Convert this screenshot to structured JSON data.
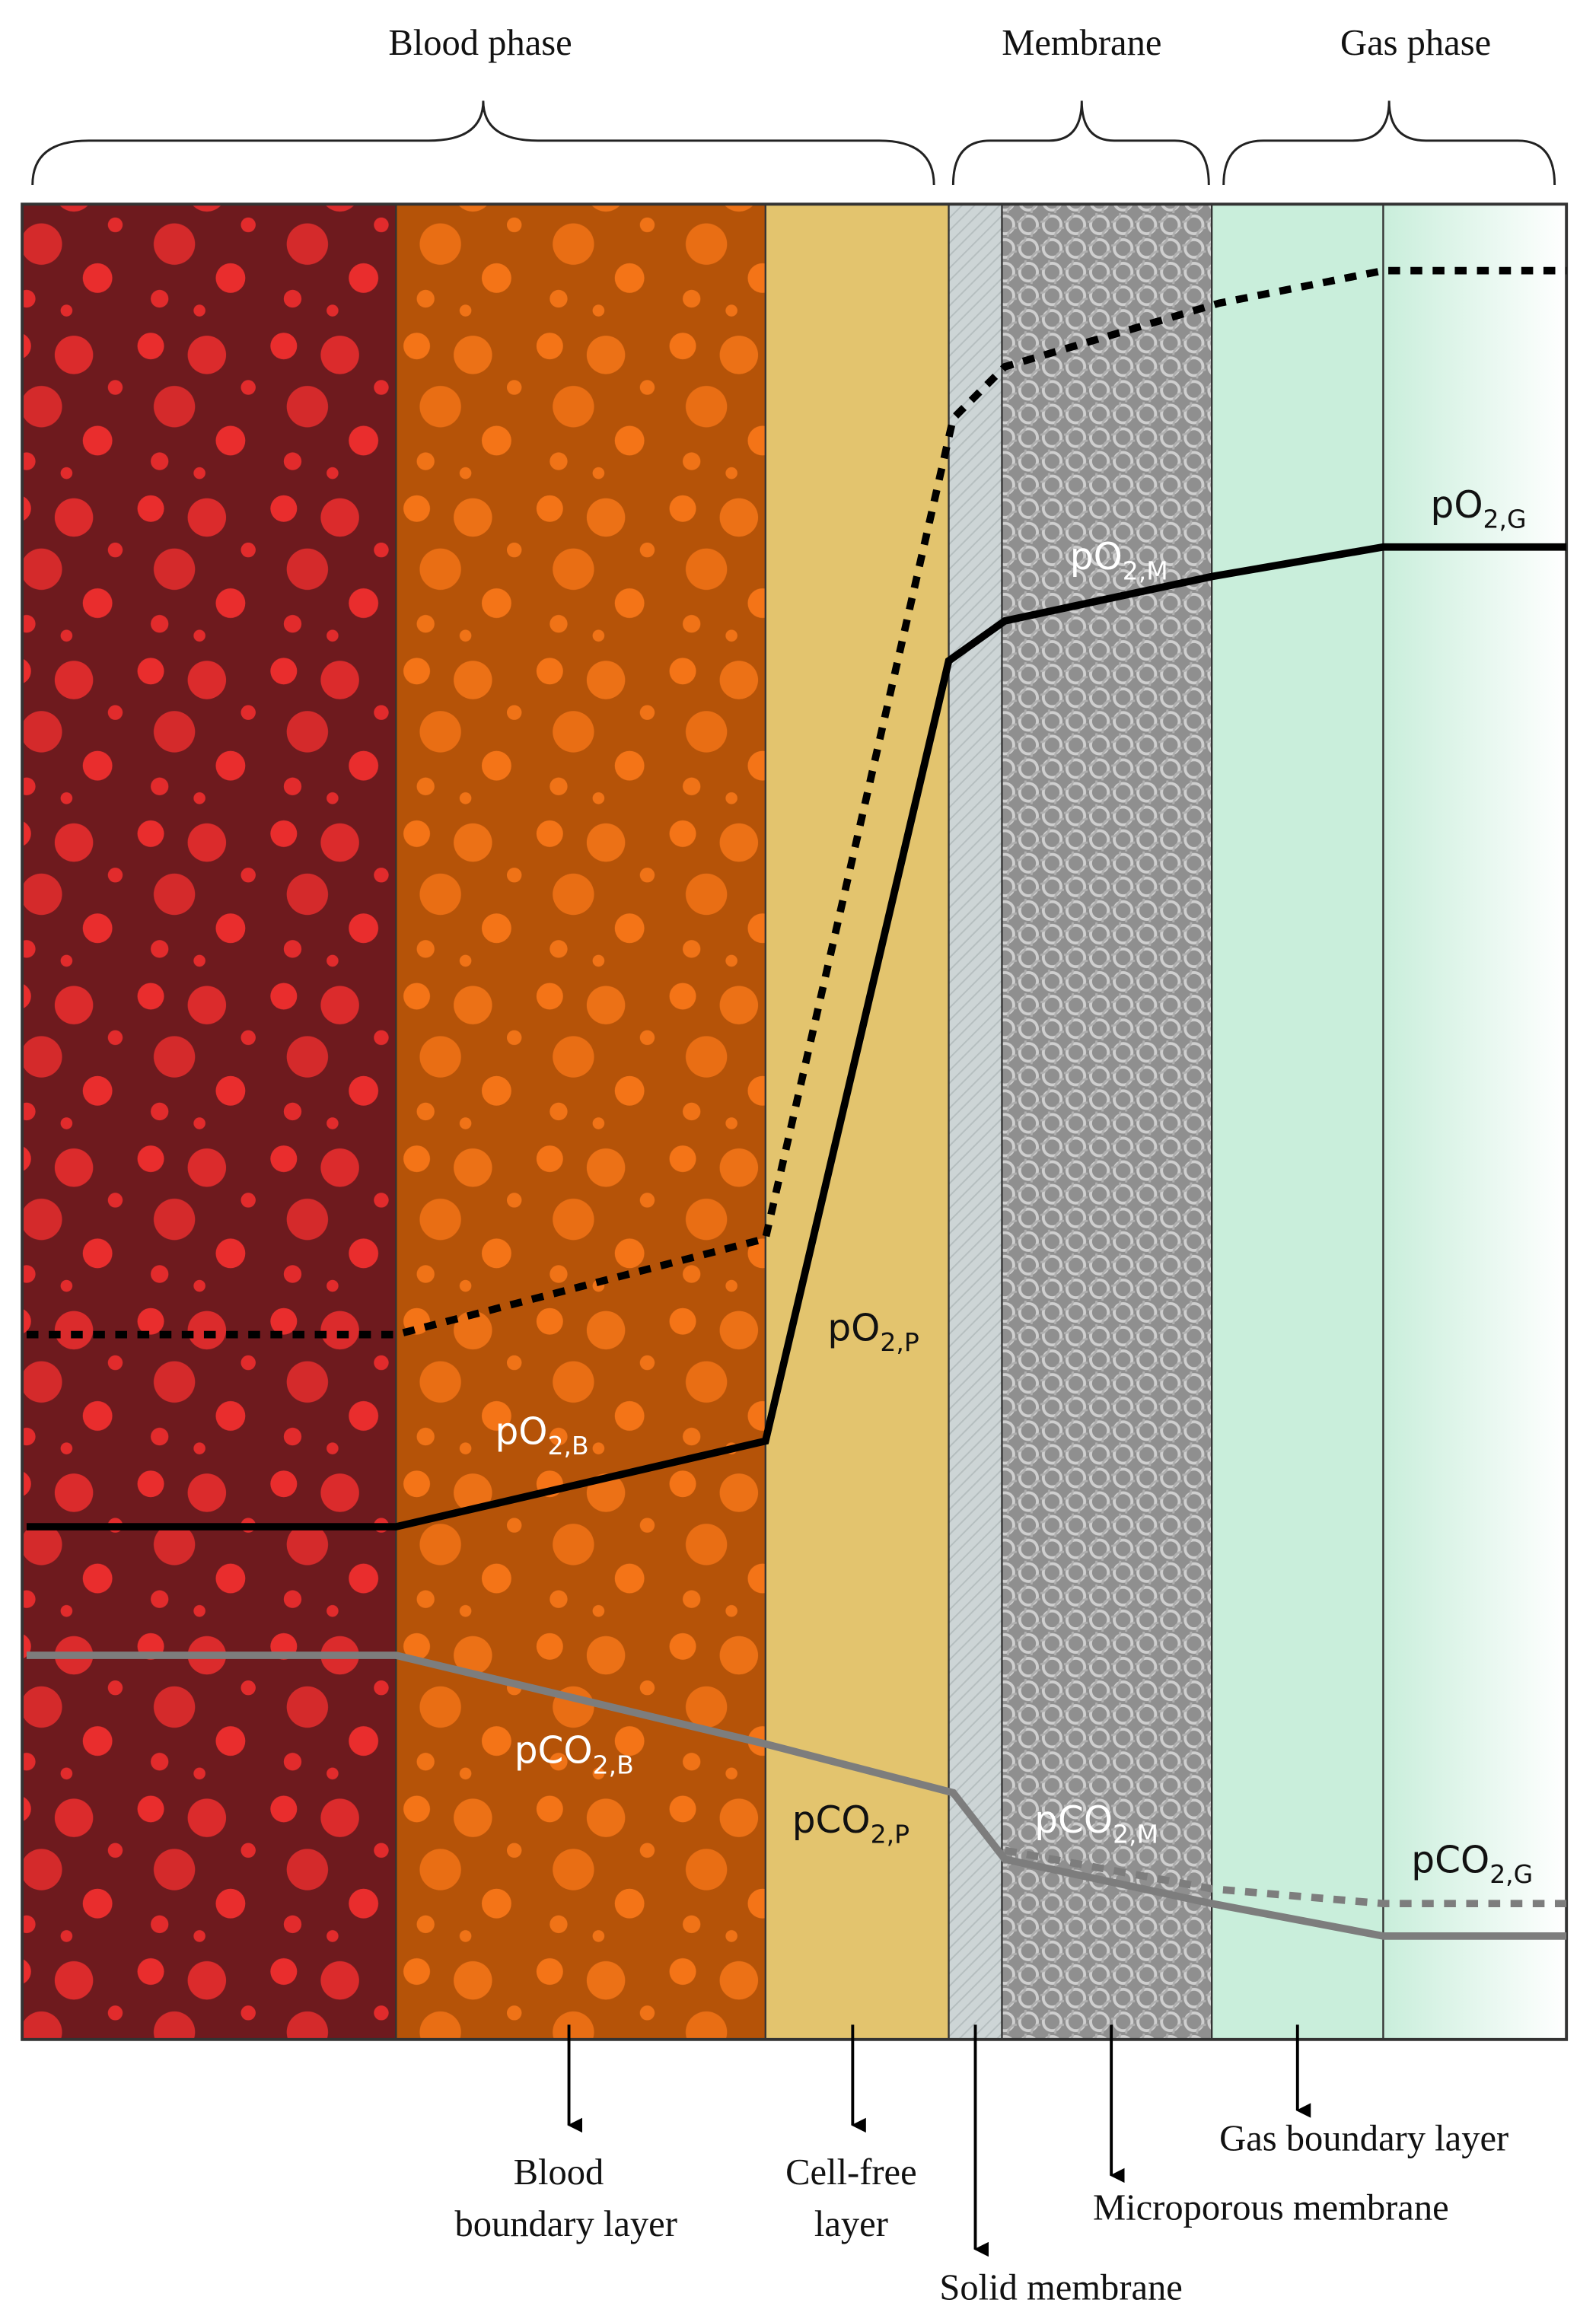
{
  "header": {
    "phases": [
      "Blood phase",
      "Membrane",
      "Gas phase"
    ]
  },
  "curve_labels": [
    {
      "base": "pO",
      "sub": "2,G"
    },
    {
      "base": "pO",
      "sub": "2,M"
    },
    {
      "base": "pO",
      "sub": "2,P"
    },
    {
      "base": "pO",
      "sub": "2,B"
    },
    {
      "base": "pCO",
      "sub": "2,B"
    },
    {
      "base": "pCO",
      "sub": "2,P"
    },
    {
      "base": "pCO",
      "sub": "2,M"
    },
    {
      "base": "pCO",
      "sub": "2,G"
    }
  ],
  "layers": [
    {
      "lines": [
        "Blood",
        "boundary layer"
      ]
    },
    {
      "lines": [
        "Cell-free",
        "layer"
      ]
    },
    {
      "lines": [
        "Solid membrane"
      ]
    },
    {
      "lines": [
        "Microporous membrane"
      ]
    },
    {
      "lines": [
        "Gas boundary layer"
      ]
    }
  ]
}
